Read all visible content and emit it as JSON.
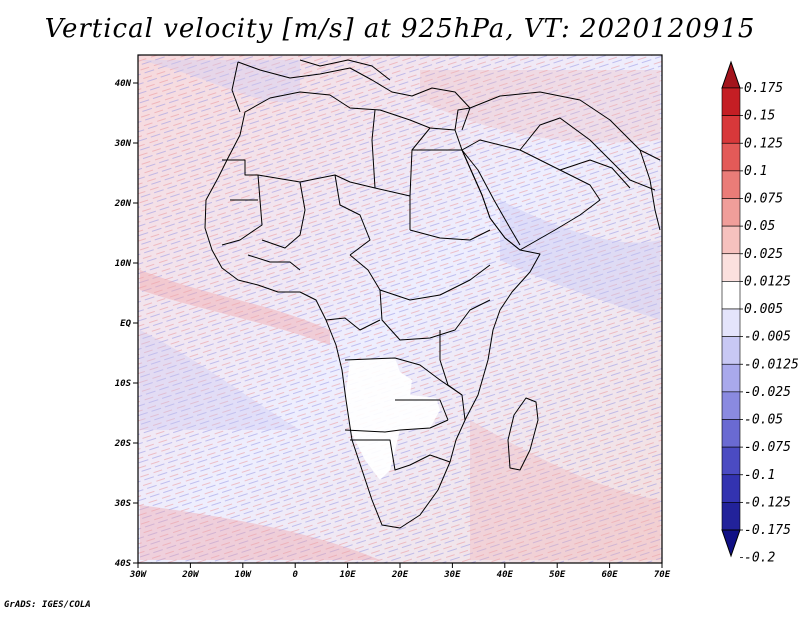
{
  "title": "Vertical velocity [m/s] at 925hPa, VT: 2020120915",
  "x_ticks": [
    "30W",
    "20W",
    "10W",
    "0",
    "10E",
    "20E",
    "30E",
    "40E",
    "50E",
    "60E",
    "70E"
  ],
  "y_ticks": [
    "40N",
    "30N",
    "20N",
    "10N",
    "EQ",
    "10S",
    "20S",
    "30S",
    "40S"
  ],
  "colorbar": {
    "levels": [
      "0.175",
      "0.15",
      "0.125",
      "0.1",
      "0.075",
      "0.05",
      "0.025",
      "0.0125",
      "0.005",
      "-0.005",
      "-0.0125",
      "-0.025",
      "-0.05",
      "-0.075",
      "-0.1",
      "-0.125",
      "-0.175",
      "-0.2"
    ],
    "colors": [
      "#a3141c",
      "#c41e24",
      "#d8383a",
      "#e35a58",
      "#ea7c78",
      "#f09e9a",
      "#f6c1be",
      "#fbe0de",
      "#ffffff",
      "#e4e4fb",
      "#c8c8f4",
      "#a9a9ec",
      "#8a8ae0",
      "#6a6ad2",
      "#4b4bc2",
      "#3333b0",
      "#22229a",
      "#101085"
    ]
  },
  "credit": "GrADS: IGES/COLA"
}
